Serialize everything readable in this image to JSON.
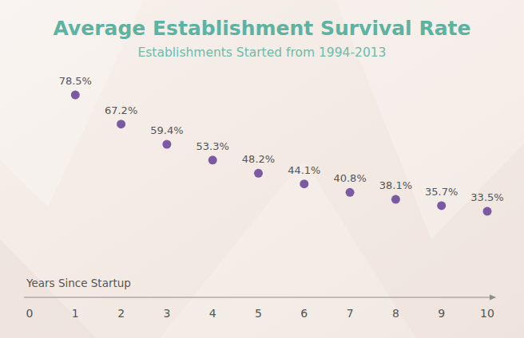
{
  "chart_data": {
    "type": "scatter",
    "title": "Average Establishment Survival Rate",
    "subtitle": "Establishments Started from 1994-2013",
    "x_label": "Years Since Startup",
    "x": [
      1,
      2,
      3,
      4,
      5,
      6,
      7,
      8,
      9,
      10
    ],
    "values": [
      78.5,
      67.2,
      59.4,
      53.3,
      48.2,
      44.1,
      40.8,
      38.1,
      35.7,
      33.5
    ],
    "value_labels": [
      "78.5%",
      "67.2%",
      "59.4%",
      "53.3%",
      "48.2%",
      "44.1%",
      "40.8%",
      "38.1%",
      "35.7%",
      "33.5%"
    ],
    "color": "#7a5ba3",
    "xlim": [
      0,
      10
    ],
    "xticks": [
      0,
      1,
      2,
      3,
      4,
      5,
      6,
      7,
      8,
      9,
      10
    ],
    "ylim": [
      0,
      100
    ],
    "grid": false,
    "data_labels": true,
    "tick_labels": "x",
    "marker": "circle"
  }
}
